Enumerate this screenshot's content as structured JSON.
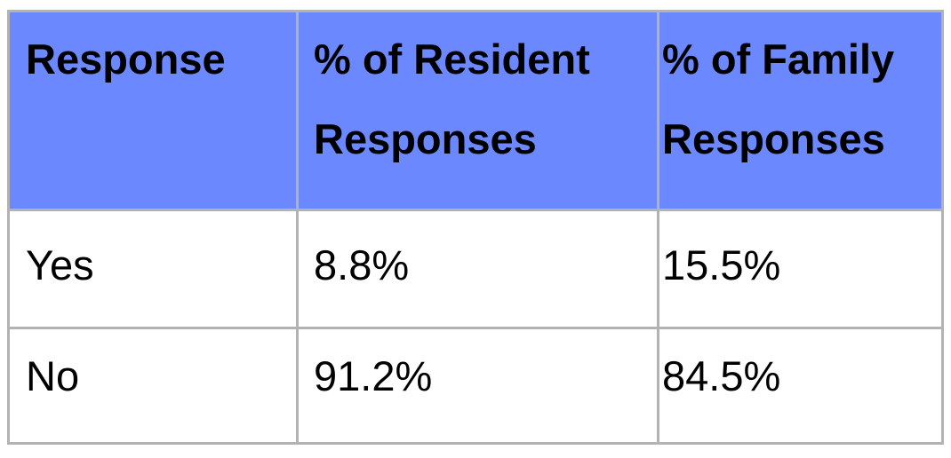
{
  "table": {
    "headers": [
      "Response",
      "% of Resident Responses",
      "% of Family Responses"
    ],
    "rows": [
      [
        "Yes",
        "8.8%",
        "15.5%"
      ],
      [
        "No",
        "91.2%",
        "84.5%"
      ]
    ]
  },
  "colors": {
    "header_background": "#6b88ff",
    "border": "#b3b3b3",
    "text": "#000000"
  }
}
